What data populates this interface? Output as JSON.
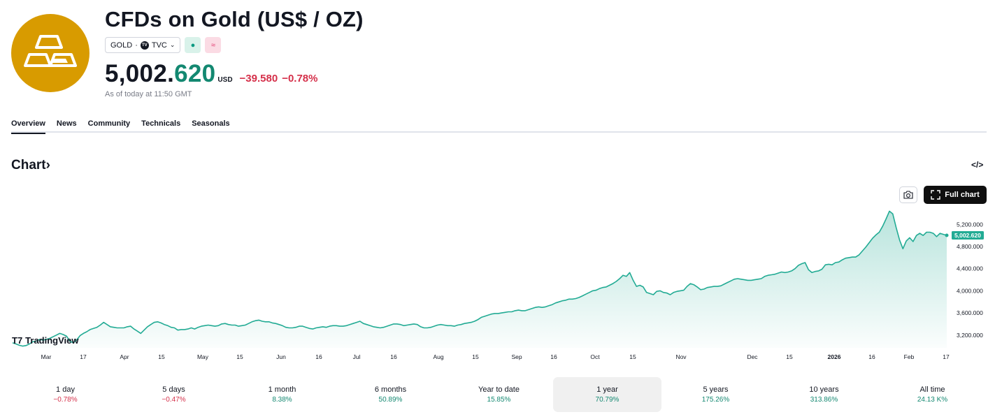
{
  "header": {
    "title": "CFDs on Gold (US$ / OZ)",
    "symbol": "GOLD",
    "separator": "·",
    "exchange_logo": "TV",
    "exchange": "TVC",
    "status_glyph": "●",
    "alt_glyph": "≈",
    "price_main": "5,002.",
    "price_dec": "620",
    "currency": "USD",
    "change": "−39.580",
    "change_pct": "−0.78%",
    "as_of": "As of today at 11:50 GMT",
    "logo_icon": "gold-bars-icon"
  },
  "tabs": [
    {
      "label": "Overview",
      "active": true
    },
    {
      "label": "News",
      "active": false
    },
    {
      "label": "Community",
      "active": false
    },
    {
      "label": "Technicals",
      "active": false
    },
    {
      "label": "Seasonals",
      "active": false
    }
  ],
  "chart_section": {
    "title": "Chart",
    "title_arrow": "›",
    "embed_icon": "</>",
    "full_chart_label": "Full chart",
    "watermark": "TradingView",
    "watermark_logo": "T7"
  },
  "chart_data": {
    "type": "area",
    "series": [
      {
        "values": [
          3060,
          3040,
          3015,
          3000,
          3010,
          3040,
          3080,
          3090,
          3120,
          3110,
          3120,
          3140,
          3170,
          3200,
          3230,
          3210,
          3180,
          3090,
          3060,
          3110,
          3190,
          3230,
          3260,
          3300,
          3320,
          3340,
          3380,
          3430,
          3390,
          3350,
          3340,
          3330,
          3330,
          3330,
          3350,
          3360,
          3310,
          3270,
          3230,
          3290,
          3350,
          3390,
          3430,
          3440,
          3420,
          3390,
          3370,
          3340,
          3330,
          3290,
          3300,
          3300,
          3310,
          3330,
          3310,
          3340,
          3360,
          3370,
          3380,
          3370,
          3360,
          3370,
          3400,
          3410,
          3390,
          3380,
          3380,
          3360,
          3370,
          3380,
          3410,
          3440,
          3460,
          3470,
          3450,
          3440,
          3440,
          3420,
          3410,
          3390,
          3370,
          3340,
          3330,
          3330,
          3340,
          3360,
          3360,
          3340,
          3320,
          3310,
          3330,
          3340,
          3350,
          3340,
          3360,
          3370,
          3370,
          3360,
          3360,
          3370,
          3390,
          3410,
          3430,
          3450,
          3410,
          3390,
          3370,
          3350,
          3340,
          3330,
          3340,
          3360,
          3380,
          3400,
          3400,
          3390,
          3370,
          3380,
          3390,
          3400,
          3390,
          3350,
          3330,
          3330,
          3340,
          3360,
          3380,
          3390,
          3380,
          3370,
          3370,
          3360,
          3380,
          3390,
          3410,
          3420,
          3430,
          3450,
          3480,
          3520,
          3540,
          3560,
          3580,
          3590,
          3590,
          3600,
          3610,
          3620,
          3620,
          3640,
          3650,
          3640,
          3640,
          3660,
          3680,
          3700,
          3710,
          3700,
          3710,
          3730,
          3750,
          3780,
          3800,
          3820,
          3830,
          3850,
          3850,
          3860,
          3880,
          3910,
          3940,
          3970,
          4000,
          4010,
          4040,
          4060,
          4070,
          4100,
          4130,
          4170,
          4220,
          4280,
          4260,
          4330,
          4190,
          4080,
          4100,
          4070,
          3970,
          3950,
          3930,
          3990,
          4000,
          3970,
          3960,
          3930,
          3970,
          3990,
          4000,
          4010,
          4080,
          4130,
          4110,
          4070,
          4020,
          4030,
          4060,
          4070,
          4080,
          4080,
          4090,
          4120,
          4150,
          4180,
          4210,
          4220,
          4210,
          4200,
          4190,
          4190,
          4200,
          4210,
          4220,
          4260,
          4280,
          4290,
          4300,
          4320,
          4340,
          4330,
          4340,
          4360,
          4400,
          4460,
          4490,
          4510,
          4380,
          4330,
          4350,
          4360,
          4390,
          4470,
          4480,
          4470,
          4510,
          4520,
          4560,
          4590,
          4600,
          4610,
          4610,
          4650,
          4720,
          4790,
          4870,
          4950,
          5010,
          5060,
          5170,
          5300,
          5440,
          5390,
          5140,
          4920,
          4760,
          4900,
          4960,
          4890,
          5000,
          5040,
          5000,
          5060,
          5060,
          5040,
          4980,
          5040,
          5020,
          5002.62
        ]
      }
    ],
    "x_labels": [
      "Mar",
      "17",
      "Apr",
      "15",
      "May",
      "15",
      "Jun",
      "16",
      "Jul",
      "16",
      "Aug",
      "15",
      "Sep",
      "16",
      "Oct",
      "15",
      "Nov",
      "Dec",
      "15",
      "2026",
      "16",
      "Feb",
      "17"
    ],
    "y_ticks": [
      "3,200.000",
      "3,600.000",
      "4,000.000",
      "4,400.000",
      "4,800.000",
      "5,200.000"
    ],
    "y_tick_values": [
      3200,
      3600,
      4000,
      4400,
      4800,
      5200
    ],
    "ylim": [
      2970,
      5470
    ],
    "last_value_label": "5,002.620",
    "line_color": "#22ab94",
    "grid": false
  },
  "periods": [
    {
      "label": "1 day",
      "value": "−0.78%",
      "sign": "neg",
      "selected": false
    },
    {
      "label": "5 days",
      "value": "−0.47%",
      "sign": "neg",
      "selected": false
    },
    {
      "label": "1 month",
      "value": "8.38%",
      "sign": "pos",
      "selected": false
    },
    {
      "label": "6 months",
      "value": "50.89%",
      "sign": "pos",
      "selected": false
    },
    {
      "label": "Year to date",
      "value": "15.85%",
      "sign": "pos",
      "selected": false
    },
    {
      "label": "1 year",
      "value": "70.79%",
      "sign": "pos",
      "selected": true
    },
    {
      "label": "5 years",
      "value": "175.26%",
      "sign": "pos",
      "selected": false
    },
    {
      "label": "10 years",
      "value": "313.86%",
      "sign": "pos",
      "selected": false
    },
    {
      "label": "All time",
      "value": "24.13 K%",
      "sign": "pos",
      "selected": false
    }
  ],
  "colors": {
    "brand": "#d89b00",
    "positive": "#138871",
    "negative": "#d5304a",
    "accent": "#22ab94"
  }
}
